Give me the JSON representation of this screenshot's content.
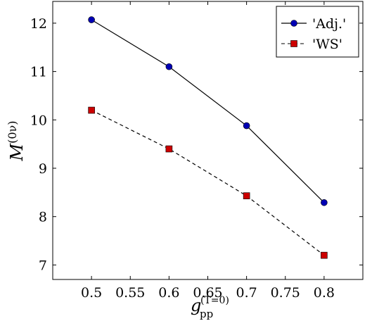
{
  "chart_data": {
    "type": "line",
    "x": [
      0.5,
      0.6,
      0.7,
      0.8
    ],
    "series": [
      {
        "name": "'Adj.'",
        "values": [
          12.07,
          11.1,
          9.88,
          8.29
        ],
        "line_style": "solid",
        "line_color": "#000000",
        "marker": "circle",
        "marker_color": "#0000b4"
      },
      {
        "name": "'WS'",
        "values": [
          10.2,
          9.4,
          8.43,
          7.2
        ],
        "line_style": "dashed",
        "line_color": "#000000",
        "marker": "square",
        "marker_color": "#cc0000"
      }
    ],
    "xlim": [
      0.45,
      0.85
    ],
    "ylim": [
      6.7,
      12.45
    ],
    "xticks": [
      "0.5",
      "0.55",
      "0.6",
      "0.65",
      "0.7",
      "0.75",
      "0.8"
    ],
    "xtick_values": [
      0.5,
      0.55,
      0.6,
      0.65,
      0.7,
      0.75,
      0.8
    ],
    "yticks": [
      "7",
      "8",
      "9",
      "10",
      "11",
      "12"
    ],
    "ytick_values": [
      7,
      8,
      9,
      10,
      11,
      12
    ],
    "xlabel": {
      "main": "g",
      "sub": "pp",
      "sup": "(T=0)"
    },
    "ylabel": {
      "main": "M",
      "sup": "(0ν)"
    },
    "grid": false,
    "legend_position": "top-right"
  }
}
